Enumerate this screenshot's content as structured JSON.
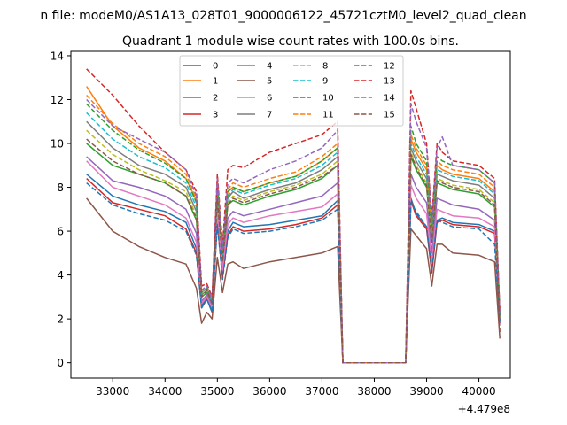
{
  "figure": {
    "suptitle": "n file: modeM0/AS1A13_028T01_9000006122_45721cztM0_level2_quad_clean"
  },
  "chart_data": {
    "type": "line",
    "title": "Quadrant 1 module wise count rates with 100.0s bins.",
    "xlabel": "",
    "ylabel": "",
    "x_offset_label": "+4.479e8",
    "xlim": [
      32200,
      40600
    ],
    "ylim": [
      -0.7,
      14.2
    ],
    "xticks": [
      33000,
      34000,
      35000,
      36000,
      37000,
      38000,
      39000,
      40000
    ],
    "yticks": [
      0,
      2,
      4,
      6,
      8,
      10,
      12,
      14
    ],
    "grid": false,
    "legend_position": "upper-center",
    "legend_columns": 4,
    "x": [
      32500,
      33000,
      33500,
      34000,
      34400,
      34600,
      34700,
      34800,
      34900,
      35000,
      35100,
      35200,
      35300,
      35500,
      36000,
      36500,
      37000,
      37300,
      37400,
      37500,
      38000,
      38500,
      38600,
      38700,
      38800,
      39000,
      39100,
      39200,
      39300,
      39500,
      40000,
      40300,
      40400
    ],
    "series": [
      {
        "name": "0",
        "color": "#1f77b4",
        "dash": false,
        "values": [
          8.6,
          7.6,
          7.2,
          6.9,
          6.4,
          5.2,
          2.6,
          3.0,
          2.4,
          6.6,
          4.0,
          6.0,
          6.4,
          6.2,
          6.3,
          6.5,
          6.7,
          7.4,
          0.0,
          0.0,
          0.0,
          0.0,
          0.0,
          7.5,
          6.8,
          6.2,
          4.2,
          6.5,
          6.6,
          6.4,
          6.3,
          6.0,
          1.9
        ]
      },
      {
        "name": "1",
        "color": "#ff7f0e",
        "dash": false,
        "values": [
          12.6,
          10.8,
          9.8,
          9.2,
          8.4,
          7.4,
          3.2,
          3.4,
          2.8,
          8.2,
          5.0,
          7.8,
          8.0,
          7.8,
          8.2,
          8.5,
          9.2,
          9.8,
          0.0,
          0.0,
          0.0,
          0.0,
          0.0,
          10.2,
          9.6,
          8.8,
          6.0,
          9.0,
          8.8,
          8.6,
          8.4,
          7.8,
          2.2
        ]
      },
      {
        "name": "2",
        "color": "#2ca02c",
        "dash": false,
        "values": [
          10.0,
          9.0,
          8.6,
          8.2,
          7.6,
          6.5,
          3.0,
          3.2,
          2.7,
          7.5,
          4.6,
          7.2,
          7.4,
          7.2,
          7.6,
          7.9,
          8.4,
          9.0,
          0.0,
          0.0,
          0.0,
          0.0,
          0.0,
          9.4,
          8.8,
          8.0,
          5.5,
          8.2,
          8.1,
          7.9,
          7.7,
          7.1,
          2.0
        ]
      },
      {
        "name": "3",
        "color": "#d62728",
        "dash": false,
        "values": [
          8.4,
          7.3,
          7.0,
          6.7,
          6.1,
          5.0,
          2.5,
          2.9,
          2.3,
          6.4,
          3.9,
          5.8,
          6.2,
          6.0,
          6.1,
          6.3,
          6.6,
          7.2,
          0.0,
          0.0,
          0.0,
          0.0,
          0.0,
          7.4,
          6.7,
          6.1,
          4.1,
          6.4,
          6.5,
          6.3,
          6.2,
          5.9,
          1.8
        ]
      },
      {
        "name": "4",
        "color": "#9467bd",
        "dash": false,
        "values": [
          9.4,
          8.3,
          8.0,
          7.6,
          7.0,
          5.9,
          2.8,
          3.1,
          2.6,
          7.0,
          4.3,
          6.6,
          6.9,
          6.7,
          7.0,
          7.3,
          7.6,
          8.2,
          0.0,
          0.0,
          0.0,
          0.0,
          0.0,
          8.6,
          8.0,
          7.3,
          5.0,
          7.5,
          7.4,
          7.2,
          7.0,
          6.5,
          1.9
        ]
      },
      {
        "name": "5",
        "color": "#8c564b",
        "dash": false,
        "values": [
          7.5,
          6.0,
          5.3,
          4.8,
          4.5,
          3.4,
          1.8,
          2.3,
          2.0,
          4.8,
          3.2,
          4.5,
          4.6,
          4.3,
          4.6,
          4.8,
          5.0,
          5.3,
          0.0,
          0.0,
          0.0,
          0.0,
          0.0,
          6.1,
          5.8,
          5.2,
          3.5,
          5.4,
          5.4,
          5.0,
          4.9,
          4.6,
          1.1
        ]
      },
      {
        "name": "6",
        "color": "#e377c2",
        "dash": false,
        "values": [
          9.2,
          8.0,
          7.6,
          7.2,
          6.6,
          5.5,
          2.7,
          3.0,
          2.5,
          6.8,
          4.2,
          6.3,
          6.6,
          6.4,
          6.7,
          6.9,
          7.1,
          7.7,
          0.0,
          0.0,
          0.0,
          0.0,
          0.0,
          8.1,
          7.5,
          6.8,
          4.6,
          7.0,
          6.9,
          6.7,
          6.6,
          6.2,
          1.8
        ]
      },
      {
        "name": "7",
        "color": "#7f7f7f",
        "dash": false,
        "values": [
          11.0,
          9.8,
          9.0,
          8.6,
          8.0,
          6.9,
          3.1,
          3.3,
          2.8,
          7.8,
          4.8,
          7.5,
          7.8,
          7.5,
          7.9,
          8.2,
          8.8,
          9.4,
          0.0,
          0.0,
          0.0,
          0.0,
          0.0,
          9.8,
          9.2,
          8.4,
          5.7,
          8.6,
          8.5,
          8.3,
          8.1,
          7.5,
          2.1
        ]
      },
      {
        "name": "8",
        "color": "#bcbd22",
        "dash": true,
        "values": [
          10.6,
          9.5,
          8.8,
          8.3,
          7.8,
          6.7,
          3.0,
          3.3,
          2.7,
          7.6,
          4.7,
          7.3,
          7.6,
          7.4,
          7.8,
          8.1,
          8.6,
          9.2,
          0.0,
          0.0,
          0.0,
          0.0,
          0.0,
          9.6,
          9.0,
          8.2,
          5.6,
          8.4,
          8.3,
          8.1,
          7.9,
          7.3,
          2.1
        ]
      },
      {
        "name": "9",
        "color": "#17becf",
        "dash": true,
        "values": [
          11.4,
          10.2,
          9.4,
          8.9,
          8.2,
          7.1,
          3.2,
          3.4,
          2.8,
          8.0,
          4.9,
          7.6,
          7.9,
          7.7,
          8.1,
          8.4,
          9.0,
          9.6,
          0.0,
          0.0,
          0.0,
          0.0,
          0.0,
          10.0,
          9.4,
          8.6,
          5.9,
          8.8,
          8.7,
          8.5,
          8.3,
          7.7,
          2.2
        ]
      },
      {
        "name": "10",
        "color": "#1f77b4",
        "dash": true,
        "values": [
          8.2,
          7.2,
          6.8,
          6.5,
          6.0,
          4.9,
          2.5,
          2.9,
          2.3,
          6.3,
          3.8,
          5.7,
          6.1,
          5.9,
          6.0,
          6.2,
          6.5,
          7.0,
          0.0,
          0.0,
          0.0,
          0.0,
          0.0,
          7.3,
          6.9,
          6.2,
          4.2,
          6.5,
          6.4,
          6.2,
          6.1,
          5.4,
          1.9
        ]
      },
      {
        "name": "11",
        "color": "#ff7f0e",
        "dash": true,
        "values": [
          12.2,
          10.9,
          10.0,
          9.4,
          8.6,
          7.5,
          3.3,
          3.5,
          2.9,
          8.3,
          5.1,
          7.9,
          8.2,
          8.0,
          8.4,
          8.7,
          9.4,
          10.0,
          0.0,
          0.0,
          0.0,
          0.0,
          0.0,
          10.4,
          9.8,
          9.0,
          6.1,
          9.2,
          9.0,
          8.8,
          8.6,
          8.0,
          2.2
        ]
      },
      {
        "name": "12",
        "color": "#2ca02c",
        "dash": true,
        "values": [
          11.8,
          10.6,
          9.7,
          9.1,
          8.4,
          7.3,
          3.2,
          3.4,
          2.9,
          8.1,
          5.0,
          7.8,
          8.0,
          7.8,
          8.2,
          8.5,
          9.2,
          9.8,
          0.0,
          0.0,
          0.0,
          0.0,
          0.0,
          10.8,
          10.0,
          9.2,
          6.2,
          9.4,
          9.2,
          9.0,
          8.8,
          8.2,
          2.2
        ]
      },
      {
        "name": "13",
        "color": "#d62728",
        "dash": true,
        "values": [
          13.4,
          12.2,
          10.8,
          9.6,
          8.8,
          7.8,
          3.5,
          3.6,
          3.0,
          8.6,
          5.4,
          8.8,
          9.0,
          8.9,
          9.6,
          10.0,
          10.4,
          11.0,
          0.0,
          0.0,
          0.0,
          0.0,
          0.0,
          12.4,
          11.6,
          10.0,
          6.6,
          10.0,
          9.6,
          9.2,
          9.0,
          8.4,
          2.3
        ]
      },
      {
        "name": "14",
        "color": "#9467bd",
        "dash": true,
        "values": [
          12.0,
          10.8,
          10.2,
          9.6,
          8.8,
          7.6,
          3.3,
          3.5,
          2.9,
          8.4,
          5.2,
          8.2,
          8.4,
          8.2,
          8.8,
          9.2,
          9.8,
          10.6,
          0.0,
          0.0,
          0.0,
          0.0,
          0.0,
          11.8,
          11.0,
          9.8,
          6.4,
          9.8,
          10.3,
          9.0,
          8.8,
          8.2,
          2.2
        ]
      },
      {
        "name": "15",
        "color": "#8c564b",
        "dash": true,
        "values": [
          10.2,
          9.2,
          8.6,
          8.2,
          7.6,
          6.6,
          3.0,
          3.3,
          2.7,
          7.5,
          4.6,
          7.2,
          7.5,
          7.3,
          7.7,
          8.0,
          8.5,
          9.0,
          0.0,
          0.0,
          0.0,
          0.0,
          0.0,
          9.5,
          8.9,
          8.1,
          5.5,
          8.3,
          8.2,
          8.0,
          7.8,
          7.2,
          1.4
        ]
      }
    ]
  }
}
